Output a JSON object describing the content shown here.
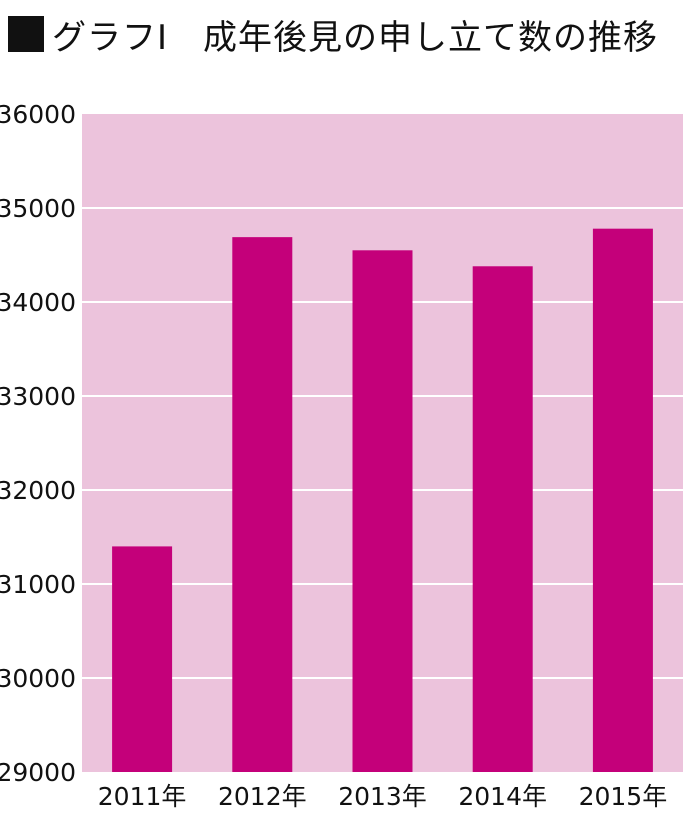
{
  "title": "グラフI　成年後見の申し立て数の推移",
  "chart_data": {
    "type": "bar",
    "title": "グラフI　成年後見の申し立て数の推移",
    "categories": [
      "2011年",
      "2012年",
      "2013年",
      "2014年",
      "2015年"
    ],
    "values": [
      31400,
      34690,
      34550,
      34380,
      34780
    ],
    "ylim": [
      29000,
      36000
    ],
    "yticks": [
      29000,
      30000,
      31000,
      32000,
      33000,
      34000,
      35000,
      36000
    ],
    "grid": true,
    "colors": {
      "bar": "#c4007a",
      "plot_background": "#ecc3dc",
      "gridline": "#ffffff"
    }
  }
}
